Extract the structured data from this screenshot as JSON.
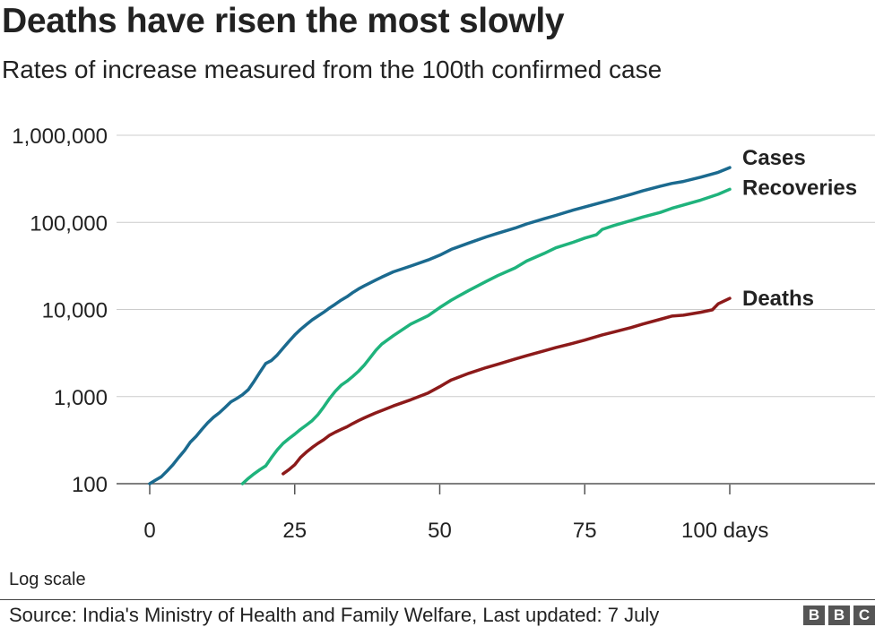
{
  "chart_data": {
    "type": "line",
    "title": "Deaths have risen the most slowly",
    "subtitle": "Rates of increase measured from the 100th confirmed case",
    "xlabel": "",
    "ylabel": "",
    "x_ticks": [
      {
        "value": 0,
        "label": "0"
      },
      {
        "value": 25,
        "label": "25"
      },
      {
        "value": 50,
        "label": "50"
      },
      {
        "value": 75,
        "label": "75"
      },
      {
        "value": 100,
        "label": "100 days"
      }
    ],
    "y_ticks": [
      {
        "value": 100,
        "label": "100"
      },
      {
        "value": 1000,
        "label": "1,000"
      },
      {
        "value": 10000,
        "label": "10,000"
      },
      {
        "value": 100000,
        "label": "100,000"
      },
      {
        "value": 1000000,
        "label": "1,000,000"
      }
    ],
    "xlim": [
      0,
      100
    ],
    "ylim": [
      100,
      1000000
    ],
    "yscale": "log",
    "grid": "horizontal",
    "legend": "direct labels at line ends",
    "scale_note": "Log scale",
    "series": [
      {
        "name": "Cases",
        "color": "#1b6a8f",
        "points": [
          [
            0,
            100
          ],
          [
            1,
            110
          ],
          [
            2,
            120
          ],
          [
            3,
            140
          ],
          [
            4,
            165
          ],
          [
            5,
            200
          ],
          [
            6,
            240
          ],
          [
            7,
            300
          ],
          [
            8,
            350
          ],
          [
            9,
            420
          ],
          [
            10,
            500
          ],
          [
            11,
            580
          ],
          [
            12,
            650
          ],
          [
            13,
            750
          ],
          [
            14,
            870
          ],
          [
            15,
            950
          ],
          [
            16,
            1050
          ],
          [
            17,
            1200
          ],
          [
            18,
            1500
          ],
          [
            19,
            1900
          ],
          [
            20,
            2400
          ],
          [
            21,
            2600
          ],
          [
            22,
            3000
          ],
          [
            23,
            3600
          ],
          [
            24,
            4300
          ],
          [
            25,
            5100
          ],
          [
            26,
            5900
          ],
          [
            27,
            6700
          ],
          [
            28,
            7600
          ],
          [
            29,
            8400
          ],
          [
            30,
            9300
          ],
          [
            31,
            10400
          ],
          [
            32,
            11500
          ],
          [
            33,
            12800
          ],
          [
            34,
            14000
          ],
          [
            35,
            15600
          ],
          [
            36,
            17200
          ],
          [
            37,
            18700
          ],
          [
            38,
            20200
          ],
          [
            39,
            21800
          ],
          [
            40,
            23500
          ],
          [
            42,
            27000
          ],
          [
            45,
            31500
          ],
          [
            48,
            37000
          ],
          [
            50,
            42000
          ],
          [
            52,
            49000
          ],
          [
            55,
            58000
          ],
          [
            58,
            68000
          ],
          [
            60,
            75000
          ],
          [
            63,
            86000
          ],
          [
            65,
            96000
          ],
          [
            68,
            110000
          ],
          [
            70,
            120000
          ],
          [
            73,
            138000
          ],
          [
            75,
            150000
          ],
          [
            78,
            170000
          ],
          [
            80,
            185000
          ],
          [
            83,
            210000
          ],
          [
            85,
            230000
          ],
          [
            88,
            260000
          ],
          [
            90,
            280000
          ],
          [
            92,
            295000
          ],
          [
            95,
            330000
          ],
          [
            98,
            375000
          ],
          [
            100,
            425000
          ]
        ]
      },
      {
        "name": "Recoveries",
        "color": "#1fb37c",
        "points": [
          [
            16,
            100
          ],
          [
            17,
            115
          ],
          [
            18,
            130
          ],
          [
            19,
            145
          ],
          [
            20,
            160
          ],
          [
            21,
            200
          ],
          [
            22,
            245
          ],
          [
            23,
            290
          ],
          [
            24,
            330
          ],
          [
            25,
            370
          ],
          [
            26,
            420
          ],
          [
            27,
            470
          ],
          [
            28,
            530
          ],
          [
            29,
            620
          ],
          [
            30,
            760
          ],
          [
            31,
            950
          ],
          [
            32,
            1150
          ],
          [
            33,
            1350
          ],
          [
            34,
            1500
          ],
          [
            35,
            1700
          ],
          [
            36,
            1950
          ],
          [
            37,
            2300
          ],
          [
            38,
            2800
          ],
          [
            39,
            3400
          ],
          [
            40,
            4000
          ],
          [
            42,
            5000
          ],
          [
            45,
            6800
          ],
          [
            48,
            8500
          ],
          [
            50,
            10500
          ],
          [
            52,
            12800
          ],
          [
            55,
            16500
          ],
          [
            58,
            21000
          ],
          [
            60,
            24500
          ],
          [
            63,
            30000
          ],
          [
            65,
            36000
          ],
          [
            68,
            44000
          ],
          [
            70,
            51000
          ],
          [
            73,
            59000
          ],
          [
            75,
            66000
          ],
          [
            77,
            72000
          ],
          [
            78,
            83000
          ],
          [
            80,
            92000
          ],
          [
            83,
            105000
          ],
          [
            85,
            115000
          ],
          [
            88,
            130000
          ],
          [
            90,
            145000
          ],
          [
            92,
            158000
          ],
          [
            95,
            180000
          ],
          [
            98,
            210000
          ],
          [
            100,
            240000
          ]
        ]
      },
      {
        "name": "Deaths",
        "color": "#8c1a1a",
        "points": [
          [
            23,
            130
          ],
          [
            24,
            145
          ],
          [
            25,
            165
          ],
          [
            26,
            200
          ],
          [
            27,
            230
          ],
          [
            28,
            260
          ],
          [
            29,
            290
          ],
          [
            30,
            320
          ],
          [
            31,
            360
          ],
          [
            32,
            390
          ],
          [
            33,
            420
          ],
          [
            34,
            450
          ],
          [
            35,
            490
          ],
          [
            36,
            530
          ],
          [
            37,
            570
          ],
          [
            38,
            610
          ],
          [
            39,
            650
          ],
          [
            40,
            690
          ],
          [
            42,
            780
          ],
          [
            45,
            920
          ],
          [
            48,
            1100
          ],
          [
            50,
            1300
          ],
          [
            51,
            1420
          ],
          [
            52,
            1550
          ],
          [
            55,
            1850
          ],
          [
            58,
            2150
          ],
          [
            60,
            2350
          ],
          [
            63,
            2700
          ],
          [
            65,
            2950
          ],
          [
            68,
            3350
          ],
          [
            70,
            3650
          ],
          [
            73,
            4100
          ],
          [
            75,
            4450
          ],
          [
            78,
            5100
          ],
          [
            80,
            5500
          ],
          [
            83,
            6200
          ],
          [
            85,
            6800
          ],
          [
            88,
            7700
          ],
          [
            90,
            8400
          ],
          [
            92,
            8600
          ],
          [
            95,
            9300
          ],
          [
            97,
            9900
          ],
          [
            98,
            11600
          ],
          [
            100,
            13400
          ]
        ]
      }
    ],
    "source": "Source: India's Ministry of Health and Family Welfare, Last updated: 7 July",
    "logo_letters": [
      "B",
      "B",
      "C"
    ]
  }
}
